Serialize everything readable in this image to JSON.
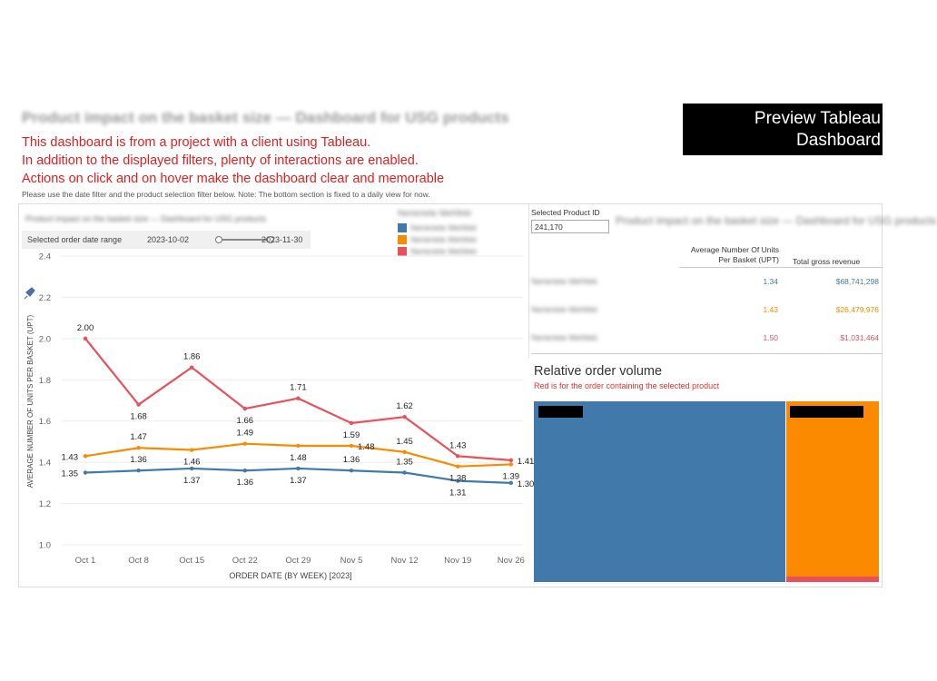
{
  "header": {
    "title_blurred": "Product impact on the basket size — Dashboard for USG products",
    "intro_lines": [
      "This dashboard is from a project with a client using Tableau.",
      "In addition to the displayed filters, plenty of interactions are enabled.",
      "Actions on click and on hover make the dashboard clear and memorable"
    ],
    "preview_line1": "Preview Tableau",
    "preview_line2": "Dashboard",
    "instructions": "Please use the date filter and the product selection filter below.  Note: The bottom section is fixed to a daily view for now."
  },
  "colors": {
    "blue": "#4279ab",
    "orange": "#fc8a00",
    "red": "#e8505b",
    "intro_red": "#e02020"
  },
  "left_panel": {
    "subtitle_blurred": "Product impact on the basket size — Dashboard for USG products",
    "legend_title_blurred": "Nerieriete Mehfeki",
    "legend_items_blurred": [
      "Nerieriete Mehfeki",
      "Nerieriete Mehfeki",
      "Nerieriete Mehfeki"
    ],
    "date_filter": {
      "label": "Selected order date range",
      "start": "2023-10-02",
      "end": "2023-11-30"
    }
  },
  "right_panel": {
    "product_filter_label": "Selected Product ID",
    "product_filter_value": "241,170",
    "blurred_title": "Product impact on the basket size — Dashboard for USG products",
    "table": {
      "col_upt": "Average Number Of Units Per Basket (UPT)",
      "col_rev": "Total gross revenue",
      "rows": [
        {
          "name": "Nerieriete Mehfeki",
          "upt": "1.34",
          "rev": "$68,741,298"
        },
        {
          "name": "Nerieriete Mehfeki",
          "upt": "1.43",
          "rev": "$26,479,976"
        },
        {
          "name": "Nerieriete Mehfeki",
          "upt": "1.50",
          "rev": "$1,031,464"
        }
      ]
    },
    "treemap": {
      "title": "Relative order volume",
      "subtitle": "Red is for the order containing the selected product"
    }
  },
  "chart_data": {
    "type": "line",
    "title": "",
    "xlabel": "ORDER DATE (BY WEEK) [2023]",
    "ylabel": "AVERAGE NUMBER OF UNITS PER BASKET (UPT)",
    "categories": [
      "Oct 1",
      "Oct 8",
      "Oct 15",
      "Oct 22",
      "Oct 29",
      "Nov 5",
      "Nov 12",
      "Nov 19",
      "Nov 26"
    ],
    "ylim": [
      1.0,
      2.4
    ],
    "yticks": [
      "1.0",
      "1.2",
      "1.4",
      "1.6",
      "1.8",
      "2.0",
      "2.2",
      "2.4"
    ],
    "grid": true,
    "series": [
      {
        "name": "red",
        "color": "#e8505b",
        "values": [
          2.0,
          1.68,
          1.86,
          1.66,
          1.71,
          1.59,
          1.62,
          1.43,
          1.41
        ],
        "labels": [
          "2.00",
          "1.68",
          "1.86",
          "1.66",
          "1.71",
          "1.59",
          "1.62",
          "1.43",
          "1.41"
        ],
        "label_pos": [
          "above",
          "below",
          "above",
          "below",
          "above",
          "below",
          "above",
          "above",
          "right"
        ]
      },
      {
        "name": "orange",
        "color": "#fc8a00",
        "values": [
          1.43,
          1.47,
          1.46,
          1.49,
          1.48,
          1.48,
          1.45,
          1.38,
          1.39
        ],
        "labels": [
          "1.43",
          "1.47",
          "1.46",
          "1.49",
          "1.48",
          "1.48",
          "1.45",
          "1.38",
          "1.39"
        ],
        "label_pos": [
          "left",
          "above",
          "below",
          "above",
          "below",
          "right",
          "above",
          "below",
          "below"
        ]
      },
      {
        "name": "blue",
        "color": "#4279ab",
        "values": [
          1.35,
          1.36,
          1.37,
          1.36,
          1.37,
          1.36,
          1.35,
          1.31,
          1.3
        ],
        "labels": [
          "1.35",
          "1.36",
          "1.37",
          "1.36",
          "1.37",
          "1.36",
          "1.35",
          "1.31",
          "1.30"
        ],
        "label_pos": [
          "left",
          "above",
          "below",
          "below",
          "below",
          "above",
          "above",
          "below",
          "right"
        ]
      }
    ]
  }
}
